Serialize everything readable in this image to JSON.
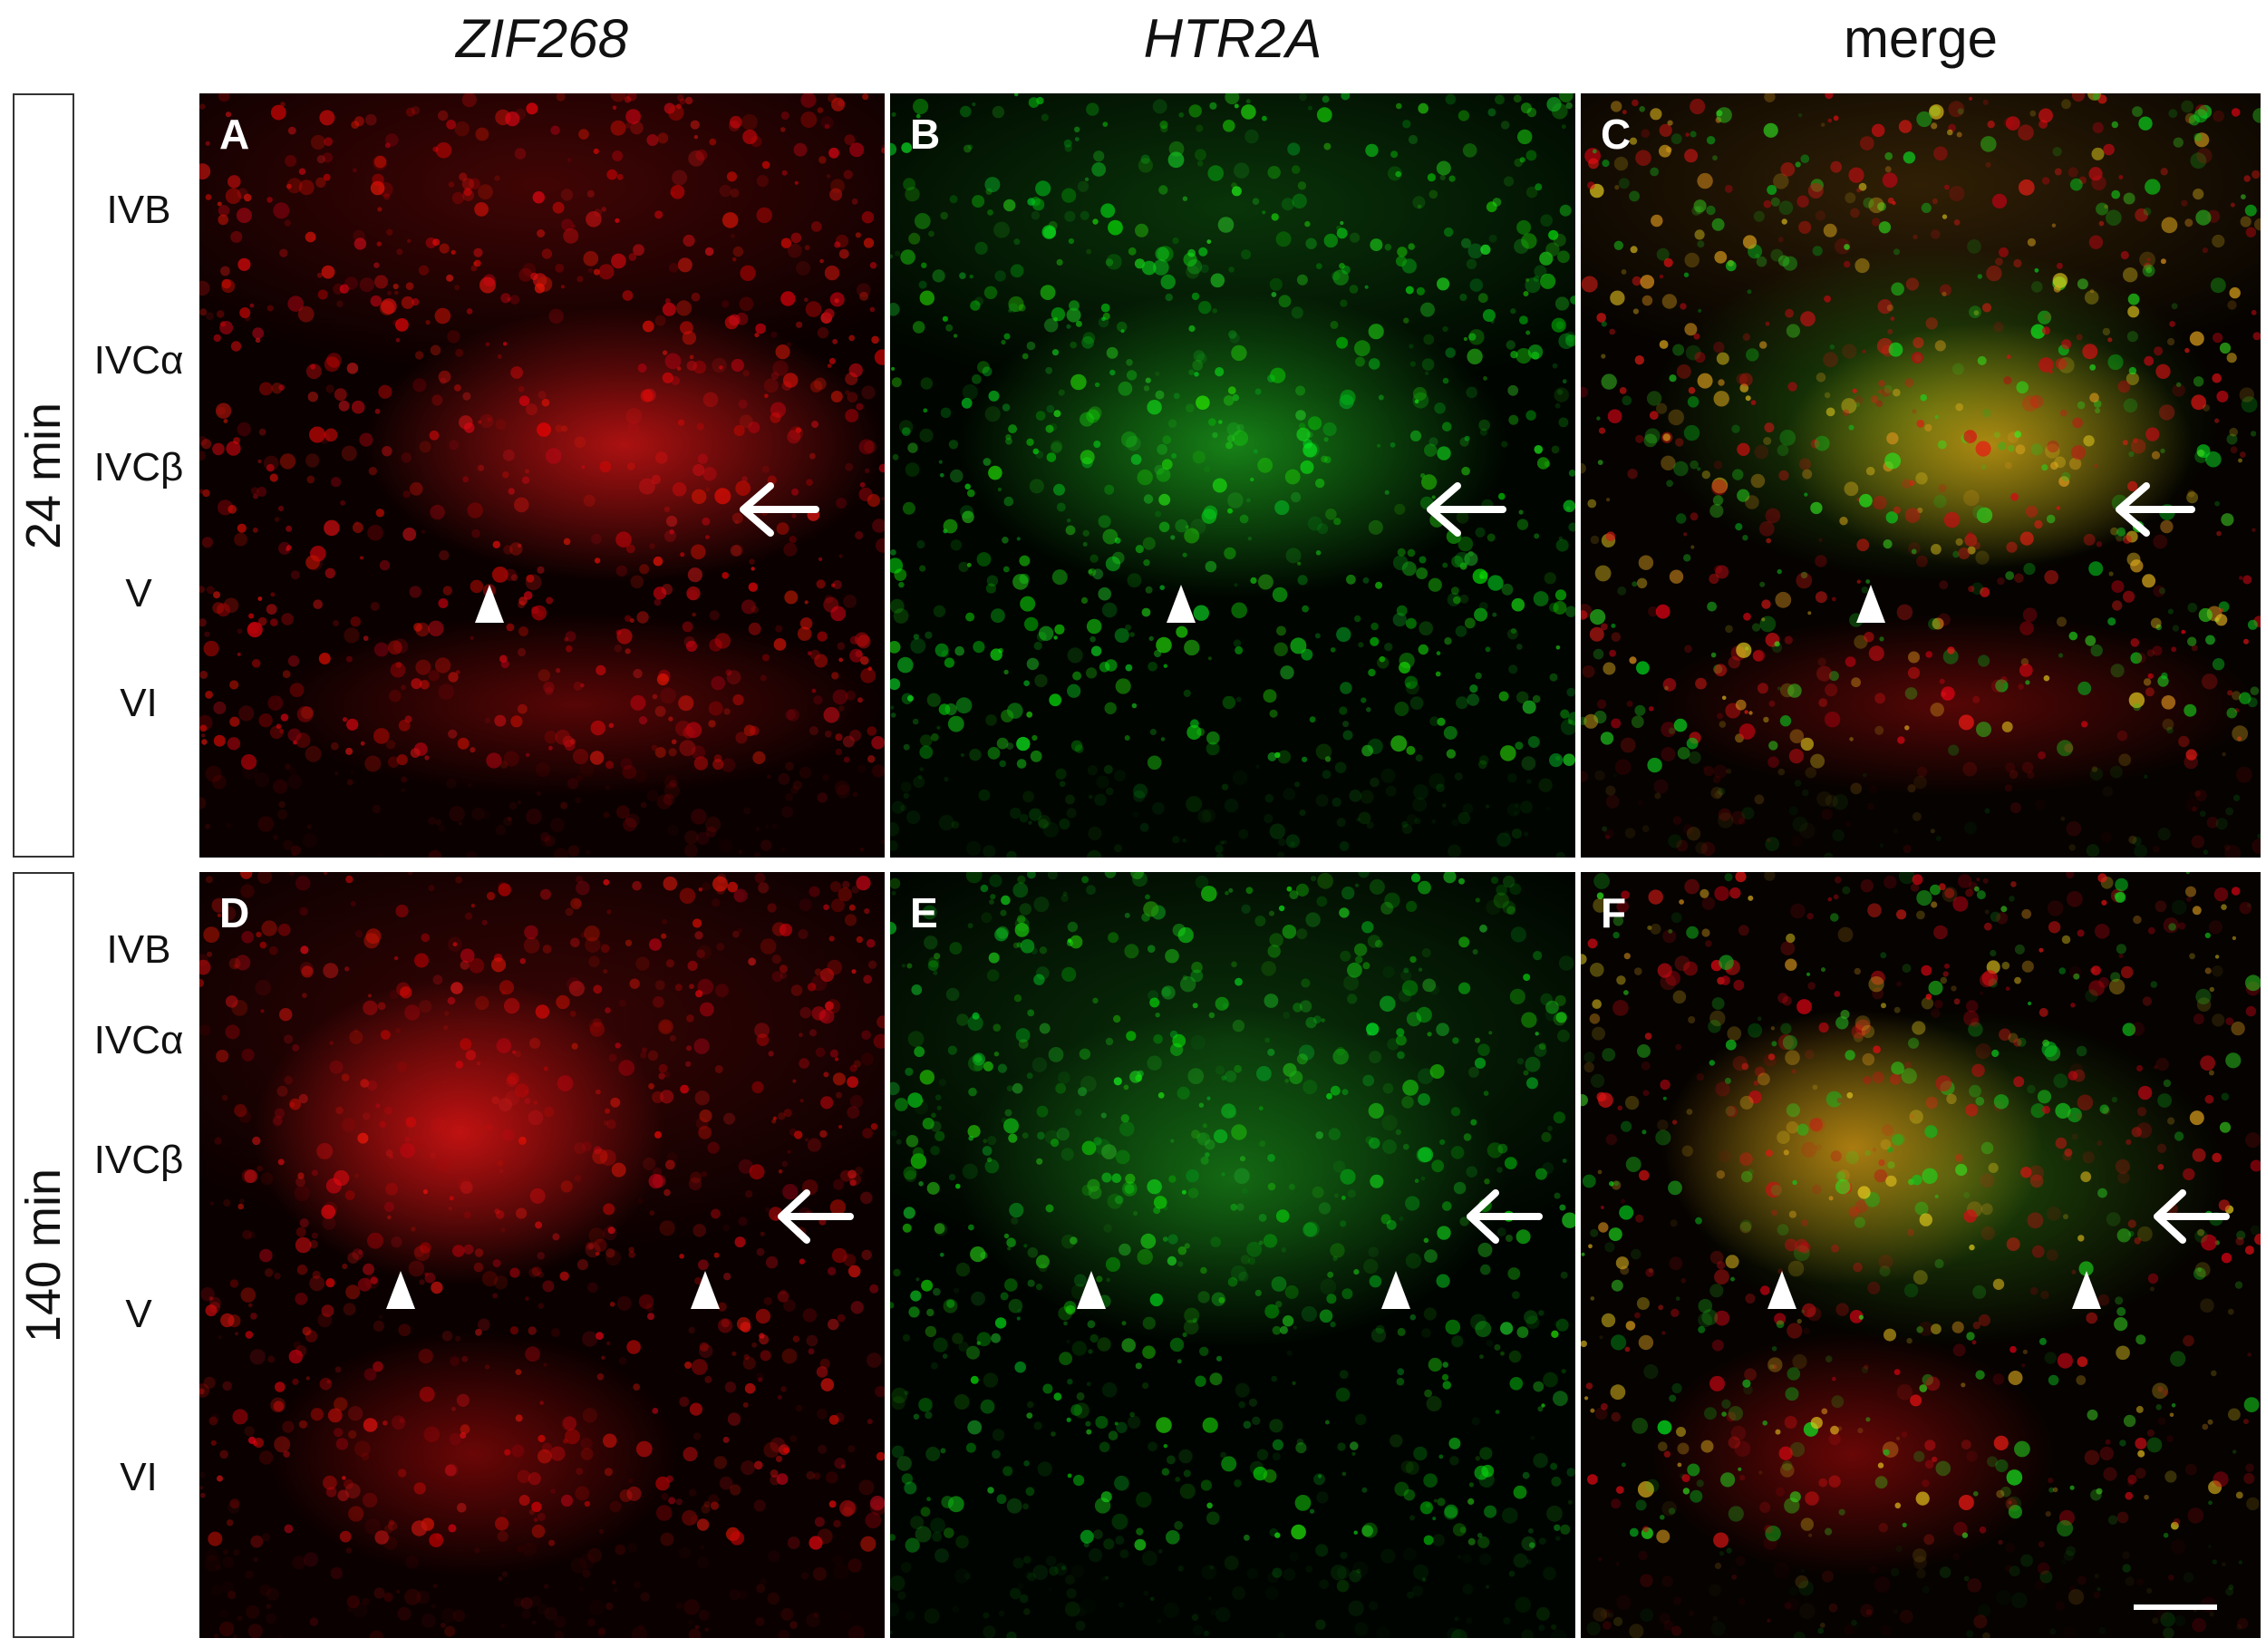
{
  "columns": [
    {
      "title": "ZIF268",
      "italic": true
    },
    {
      "title": "HTR2A",
      "italic": true
    },
    {
      "title": "merge",
      "italic": false
    }
  ],
  "rows": [
    {
      "label": "24 min",
      "layers": [
        "IVB",
        "IVCα",
        "IVCβ",
        "V",
        "VI"
      ],
      "panels": [
        {
          "letter": "A",
          "channel": "red"
        },
        {
          "letter": "B",
          "channel": "green"
        },
        {
          "letter": "C",
          "channel": "merge"
        }
      ]
    },
    {
      "label": "140 min",
      "layers": [
        "IVB",
        "IVCα",
        "IVCβ",
        "V",
        "VI"
      ],
      "panels": [
        {
          "letter": "D",
          "channel": "red"
        },
        {
          "letter": "E",
          "channel": "green"
        },
        {
          "letter": "F",
          "channel": "merge"
        }
      ]
    }
  ],
  "colors": {
    "red_channel": "#e01818",
    "green_channel": "#28c828",
    "merge_overlap": "#e0b020",
    "marker": "#ffffff"
  },
  "markers": {
    "arrow_icon": "left-arrow-icon",
    "arrowhead_icon": "triangle-arrowhead-icon"
  }
}
